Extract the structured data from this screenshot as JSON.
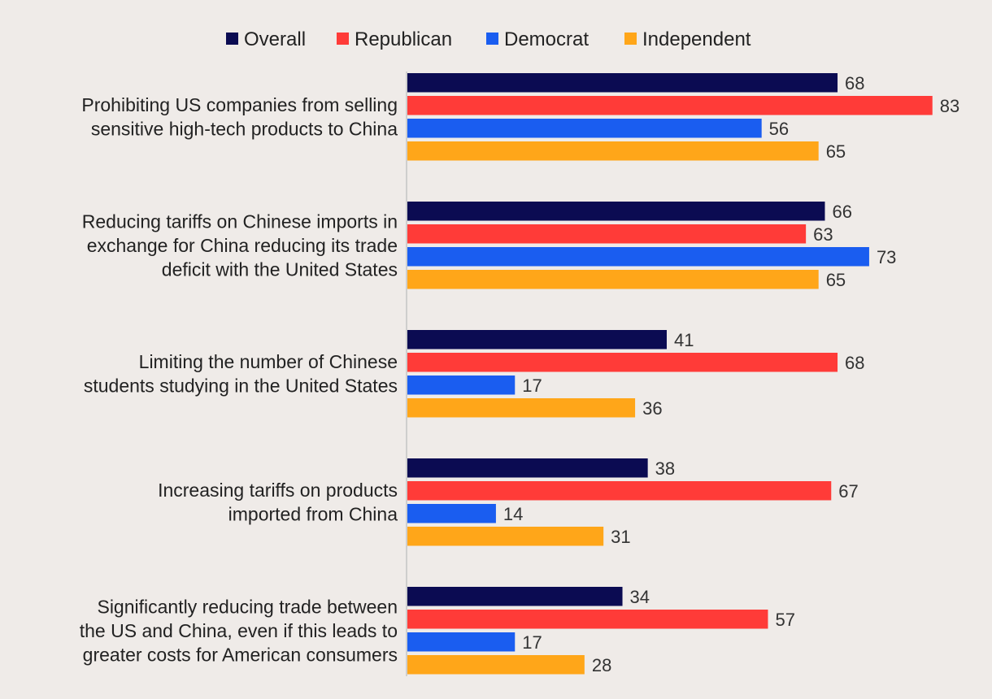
{
  "chart_data": {
    "type": "bar",
    "orientation": "horizontal",
    "title": "",
    "xlabel": "",
    "ylabel": "",
    "xlim": [
      0,
      100
    ],
    "grid": false,
    "legend_position": "top",
    "categories": [
      [
        "Prohibiting US companies from selling",
        "sensitive high-tech products to China"
      ],
      [
        "Reducing tariffs on Chinese imports in",
        "exchange for China reducing its trade",
        "deficit with the United States"
      ],
      [
        "Limiting the number of Chinese",
        "students studying in the United States"
      ],
      [
        "Increasing tariffs on products",
        "imported from China"
      ],
      [
        "Significantly reducing trade between",
        "the US and China, even if this leads to",
        "greater costs for American consumers"
      ]
    ],
    "series": [
      {
        "name": "Overall",
        "color": "#0b0b52",
        "values": [
          68,
          66,
          41,
          38,
          34
        ]
      },
      {
        "name": "Republican",
        "color": "#ff3b38",
        "values": [
          83,
          63,
          68,
          67,
          57
        ]
      },
      {
        "name": "Democrat",
        "color": "#1a5df0",
        "values": [
          56,
          73,
          17,
          14,
          17
        ]
      },
      {
        "name": "Independent",
        "color": "#ffa619",
        "values": [
          65,
          65,
          36,
          31,
          28
        ]
      }
    ]
  }
}
